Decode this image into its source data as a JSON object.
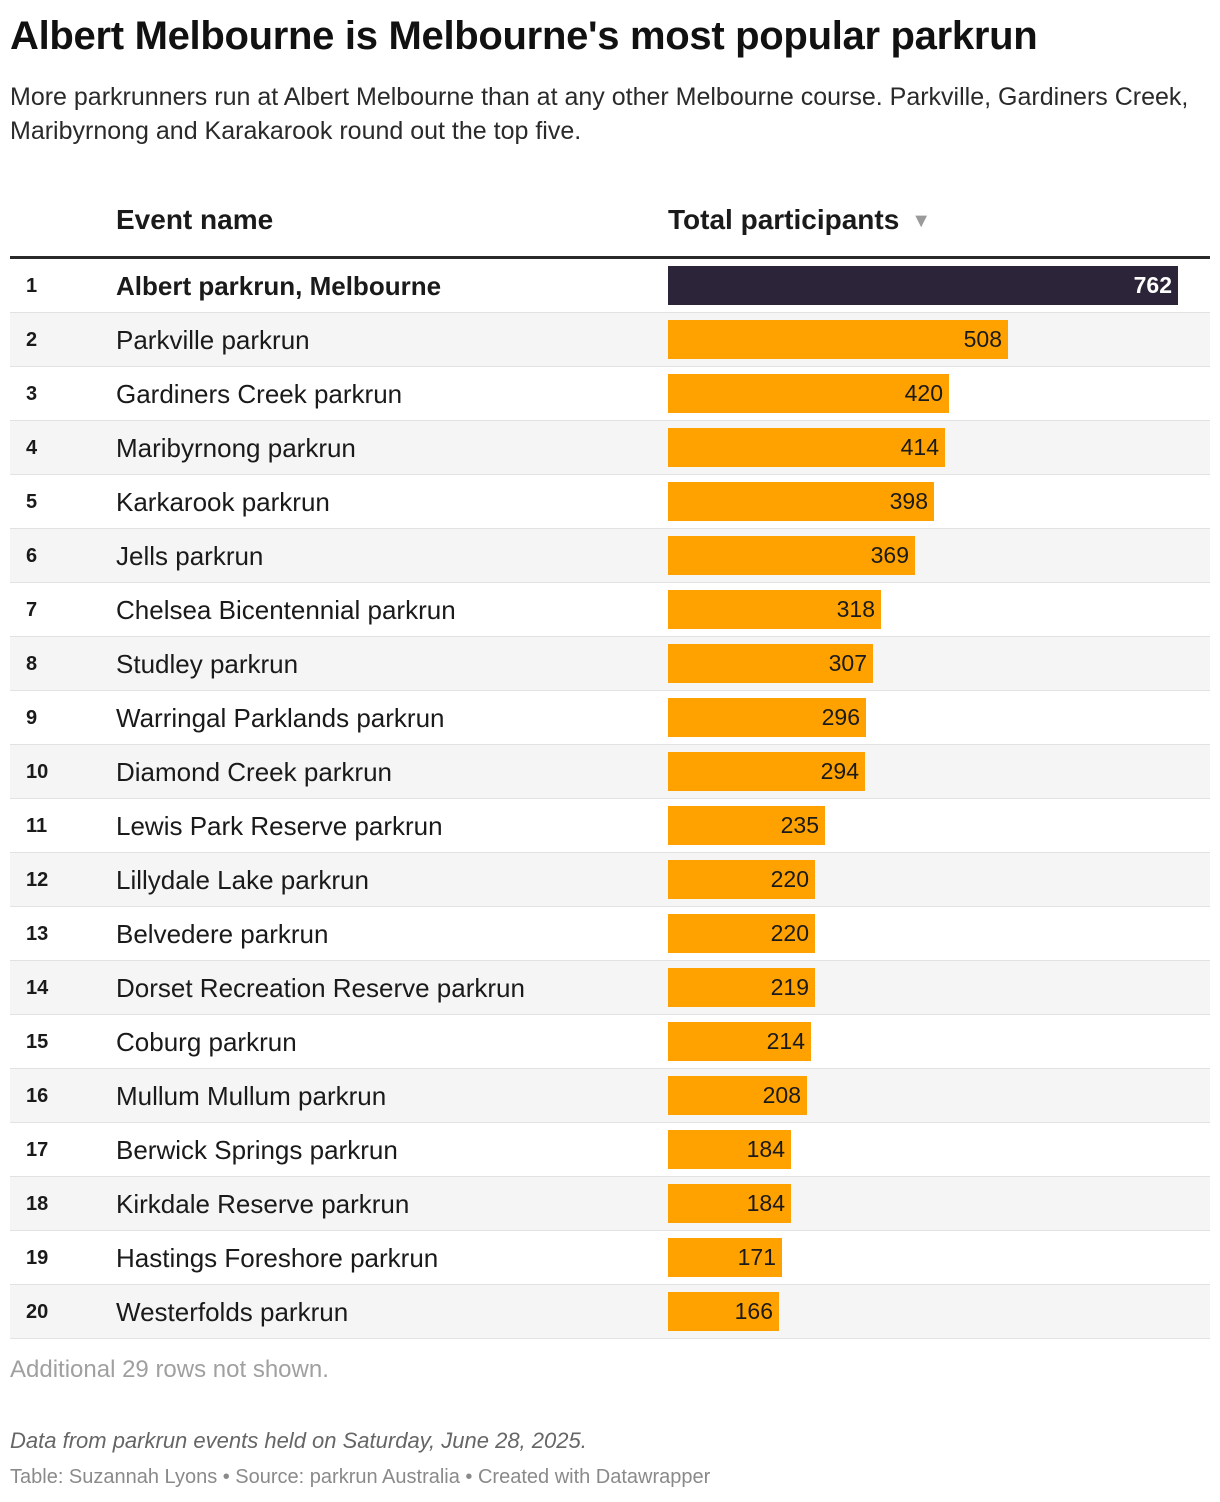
{
  "title": "Albert Melbourne is Melbourne's most popular parkrun",
  "subtitle": "More parkrunners run at Albert Melbourne than at any other Melbourne course. Parkville, Gardiners Creek, Maribyrnong and Karakarook round out the top five.",
  "table": {
    "col_name_header": "Event name",
    "col_total_header": "Total participants",
    "sort_icon": "sort-descending-icon",
    "sort_glyph": "▼"
  },
  "colors": {
    "highlight_bar": "#2c2439",
    "bar": "#ffa200"
  },
  "chart_data": {
    "type": "table",
    "title": "Albert Melbourne is Melbourne's most popular parkrun",
    "columns": [
      "",
      "Event name",
      "Total participants"
    ],
    "bar_scale_max": 762,
    "rows": [
      {
        "rank": "1",
        "name": "Albert parkrun, Melbourne",
        "value": 762,
        "highlight": true
      },
      {
        "rank": "2",
        "name": "Parkville parkrun",
        "value": 508
      },
      {
        "rank": "3",
        "name": "Gardiners Creek parkrun",
        "value": 420
      },
      {
        "rank": "4",
        "name": "Maribyrnong parkrun",
        "value": 414
      },
      {
        "rank": "5",
        "name": "Karkarook parkrun",
        "value": 398
      },
      {
        "rank": "6",
        "name": "Jells parkrun",
        "value": 369
      },
      {
        "rank": "7",
        "name": "Chelsea Bicentennial parkrun",
        "value": 318
      },
      {
        "rank": "8",
        "name": "Studley parkrun",
        "value": 307
      },
      {
        "rank": "9",
        "name": "Warringal Parklands parkrun",
        "value": 296
      },
      {
        "rank": "10",
        "name": "Diamond Creek parkrun",
        "value": 294
      },
      {
        "rank": "11",
        "name": "Lewis Park Reserve parkrun",
        "value": 235
      },
      {
        "rank": "12",
        "name": "Lillydale Lake parkrun",
        "value": 220
      },
      {
        "rank": "13",
        "name": "Belvedere parkrun",
        "value": 220
      },
      {
        "rank": "14",
        "name": "Dorset Recreation Reserve parkrun",
        "value": 219
      },
      {
        "rank": "15",
        "name": "Coburg parkrun",
        "value": 214
      },
      {
        "rank": "16",
        "name": "Mullum Mullum parkrun",
        "value": 208
      },
      {
        "rank": "17",
        "name": "Berwick Springs parkrun",
        "value": 184
      },
      {
        "rank": "18",
        "name": "Kirkdale Reserve parkrun",
        "value": 184
      },
      {
        "rank": "19",
        "name": "Hastings Foreshore parkrun",
        "value": 171
      },
      {
        "rank": "20",
        "name": "Westerfolds parkrun",
        "value": 166
      }
    ]
  },
  "more_rows_note": "Additional 29 rows not shown.",
  "footnote": "Data from parkrun events held on Saturday, June 28, 2025.",
  "credits": "Table: Suzannah Lyons • Source: parkrun Australia • Created with Datawrapper"
}
